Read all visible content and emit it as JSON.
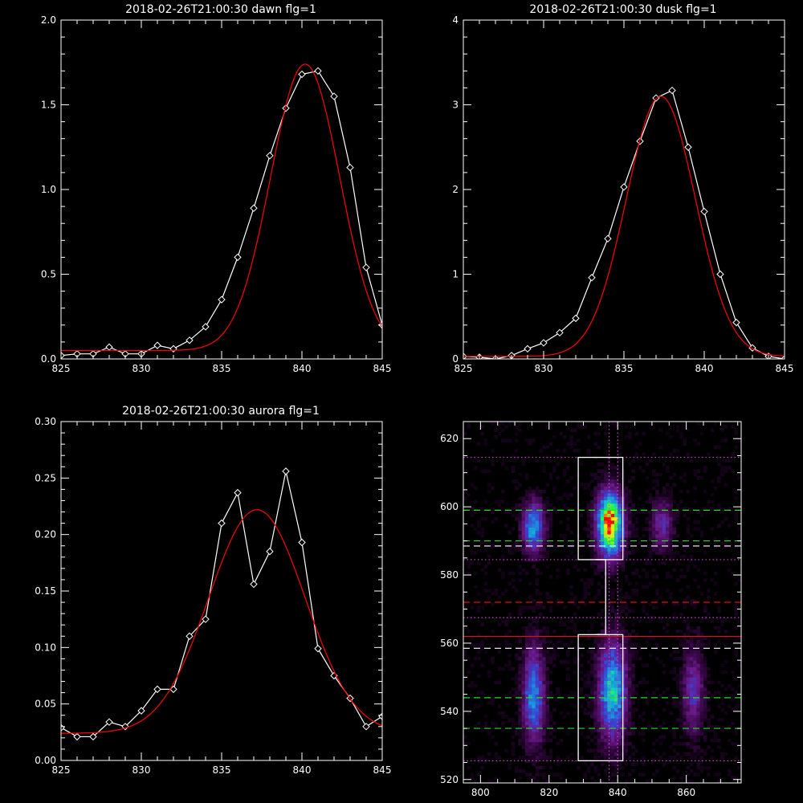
{
  "chart_data": [
    {
      "type": "line",
      "title": "2018-02-26T21:00:30 dawn flg=1",
      "xlim": [
        825,
        845
      ],
      "ylim": [
        0,
        2.0
      ],
      "xticks": [
        825,
        830,
        835,
        840,
        845
      ],
      "yticks": [
        0.0,
        0.5,
        1.0,
        1.5,
        2.0
      ],
      "yticklabels": [
        "0.0",
        "0.5",
        "1.0",
        "1.5",
        "2.0"
      ],
      "series": [
        {
          "color": "#ffffff",
          "markers": "diamond",
          "x": [
            825,
            826,
            827,
            828,
            829,
            830,
            831,
            832,
            833,
            834,
            835,
            836,
            837,
            838,
            839,
            840,
            841,
            842,
            843,
            844,
            845
          ],
          "values": [
            0.02,
            0.03,
            0.03,
            0.07,
            0.03,
            0.03,
            0.08,
            0.06,
            0.11,
            0.19,
            0.35,
            0.6,
            0.89,
            1.2,
            1.48,
            1.68,
            1.7,
            1.55,
            1.13,
            0.54,
            0.2
          ]
        },
        {
          "color": "#ff0000",
          "markers": "none",
          "fit": {
            "model": "gaussian",
            "amp": 1.69,
            "center": 840.2,
            "sigma": 2.15,
            "offset": 0.05
          }
        }
      ]
    },
    {
      "type": "line",
      "title": "2018-02-26T21:00:30 dusk flg=1",
      "xlim": [
        825,
        845
      ],
      "ylim": [
        0,
        4
      ],
      "xticks": [
        825,
        830,
        835,
        840,
        845
      ],
      "yticks": [
        0,
        1,
        2,
        3,
        4
      ],
      "yticklabels": [
        "0",
        "1",
        "2",
        "3",
        "4"
      ],
      "series": [
        {
          "color": "#ffffff",
          "markers": "diamond",
          "x": [
            825,
            826,
            827,
            828,
            829,
            830,
            831,
            832,
            833,
            834,
            835,
            836,
            837,
            838,
            839,
            840,
            841,
            842,
            843,
            844,
            845
          ],
          "values": [
            0.03,
            0.02,
            0.0,
            0.04,
            0.12,
            0.19,
            0.31,
            0.48,
            0.96,
            1.42,
            2.03,
            2.57,
            3.08,
            3.17,
            2.5,
            1.74,
            1.0,
            0.43,
            0.13,
            0.03,
            0.0
          ]
        },
        {
          "color": "#ff0000",
          "markers": "none",
          "fit": {
            "model": "gaussian",
            "amp": 3.07,
            "center": 837.3,
            "sigma": 2.15,
            "offset": 0.03
          }
        }
      ]
    },
    {
      "type": "line",
      "title": "2018-02-26T21:00:30 aurora flg=1",
      "xlim": [
        825,
        845
      ],
      "ylim": [
        0,
        0.3
      ],
      "xticks": [
        825,
        830,
        835,
        840,
        845
      ],
      "yticks": [
        0.0,
        0.05,
        0.1,
        0.15,
        0.2,
        0.25,
        0.3
      ],
      "yticklabels": [
        "0.00",
        "0.05",
        "0.10",
        "0.15",
        "0.20",
        "0.25",
        "0.30"
      ],
      "series": [
        {
          "color": "#ffffff",
          "markers": "diamond",
          "x": [
            825,
            826,
            827,
            828,
            829,
            830,
            831,
            832,
            833,
            834,
            835,
            836,
            837,
            838,
            839,
            840,
            841,
            842,
            843,
            844,
            845
          ],
          "values": [
            0.029,
            0.021,
            0.021,
            0.034,
            0.03,
            0.044,
            0.063,
            0.063,
            0.11,
            0.125,
            0.21,
            0.237,
            0.156,
            0.185,
            0.256,
            0.193,
            0.099,
            0.075,
            0.055,
            0.03,
            0.039
          ]
        },
        {
          "color": "#ff0000",
          "markers": "none",
          "fit": {
            "model": "gaussian",
            "amp": 0.198,
            "center": 837.2,
            "sigma": 3.0,
            "offset": 0.024
          }
        }
      ]
    },
    {
      "type": "heatmap",
      "title": "",
      "xlim": [
        795,
        876
      ],
      "ylim": [
        519,
        625
      ],
      "xticks": [
        800,
        820,
        840,
        860
      ],
      "yticks": [
        520,
        540,
        560,
        580,
        600,
        620
      ],
      "colorscale": [
        "#000000",
        "#3a0848",
        "#6a1a8a",
        "#3a40d0",
        "#1a90e0",
        "#10d0c0",
        "#30ff30",
        "#f0f000",
        "#ff0000"
      ],
      "blobs": [
        {
          "x": 815.5,
          "y": 594,
          "sx": 2.2,
          "sy": 5,
          "peak": 0.55
        },
        {
          "x": 837.8,
          "y": 595,
          "sx": 2.6,
          "sy": 6.5,
          "peak": 1.0
        },
        {
          "x": 853,
          "y": 595,
          "sx": 2.2,
          "sy": 5,
          "peak": 0.3
        },
        {
          "x": 815.5,
          "y": 545,
          "sx": 2.2,
          "sy": 10,
          "peak": 0.48
        },
        {
          "x": 838.5,
          "y": 546,
          "sx": 2.8,
          "sy": 10,
          "peak": 0.62
        },
        {
          "x": 862,
          "y": 546,
          "sx": 2.2,
          "sy": 9,
          "peak": 0.3
        }
      ],
      "hlines": [
        {
          "y": 599,
          "color": "#20e020",
          "style": "dashed"
        },
        {
          "y": 590,
          "color": "#20e020",
          "style": "dashed"
        },
        {
          "y": 588.5,
          "color": "#ffffff",
          "style": "dashed"
        },
        {
          "y": 572,
          "color": "#dd1111",
          "style": "dashed"
        },
        {
          "y": 562,
          "color": "#dd1111",
          "style": "solid"
        },
        {
          "y": 558.5,
          "color": "#ffffff",
          "style": "dashed"
        },
        {
          "y": 544,
          "color": "#20e020",
          "style": "dashed"
        },
        {
          "y": 535,
          "color": "#20e020",
          "style": "dashed"
        },
        {
          "y": 614.5,
          "color": "#cc44cc",
          "style": "dotted"
        },
        {
          "y": 584.5,
          "color": "#cc44cc",
          "style": "dotted"
        },
        {
          "y": 567.5,
          "color": "#cc44cc",
          "style": "dotted"
        },
        {
          "y": 525.5,
          "color": "#cc44cc",
          "style": "dotted"
        }
      ],
      "vlines": [
        {
          "x": 837.5,
          "color": "#cc44cc",
          "style": "dotted"
        },
        {
          "x": 840,
          "color": "#cc44cc",
          "style": "dotted"
        }
      ],
      "boxes": [
        {
          "x0": 828.5,
          "x1": 841.5,
          "y0": 584.5,
          "y1": 614.5
        },
        {
          "x0": 828.5,
          "x1": 841.5,
          "y0": 525.5,
          "y1": 562.5
        }
      ],
      "connector": [
        [
          833.5,
          584.5
        ],
        [
          836.5,
          584.5
        ],
        [
          836.5,
          562.5
        ],
        [
          833.5,
          562.5
        ]
      ]
    }
  ]
}
